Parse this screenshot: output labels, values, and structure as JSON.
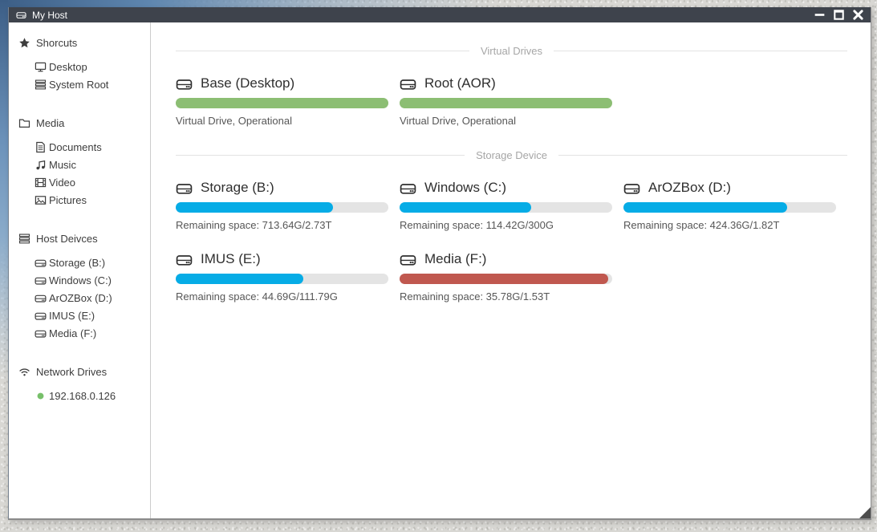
{
  "window": {
    "title": "My Host",
    "title_icon": "hdd-icon",
    "controls": [
      {
        "name": "minimize-button",
        "icon": "minimize-icon"
      },
      {
        "name": "maximize-button",
        "icon": "maximize-icon"
      },
      {
        "name": "close-button",
        "icon": "close-icon"
      }
    ]
  },
  "sidebar": {
    "sections": [
      {
        "label": "Shorcuts",
        "icon": "star-icon",
        "items": [
          {
            "label": "Desktop",
            "icon": "desktop-icon"
          },
          {
            "label": "System Root",
            "icon": "list-icon"
          }
        ]
      },
      {
        "label": "Media",
        "icon": "folder-icon",
        "items": [
          {
            "label": "Documents",
            "icon": "document-icon"
          },
          {
            "label": "Music",
            "icon": "music-icon"
          },
          {
            "label": "Video",
            "icon": "film-icon"
          },
          {
            "label": "Pictures",
            "icon": "picture-icon"
          }
        ]
      },
      {
        "label": "Host Deivces",
        "icon": "server-icon",
        "items": [
          {
            "label": "Storage (B:)",
            "icon": "hdd-icon"
          },
          {
            "label": "Windows (C:)",
            "icon": "hdd-icon"
          },
          {
            "label": "ArOZBox (D:)",
            "icon": "hdd-icon"
          },
          {
            "label": "IMUS (E:)",
            "icon": "hdd-icon"
          },
          {
            "label": "Media (F:)",
            "icon": "hdd-icon"
          }
        ]
      },
      {
        "label": "Network Drives",
        "icon": "wifi-icon",
        "items": [
          {
            "label": "192.168.0.126",
            "icon": "online-dot-icon"
          }
        ]
      }
    ]
  },
  "main": {
    "sections": [
      {
        "header": "Virtual Drives",
        "cards": [
          {
            "name": "Base (Desktop)",
            "icon": "hdd-icon",
            "percent": 100,
            "color": "green",
            "status": "Virtual Drive, Operational"
          },
          {
            "name": "Root (AOR)",
            "icon": "hdd-icon",
            "percent": 100,
            "color": "green",
            "status": "Virtual Drive, Operational"
          }
        ]
      },
      {
        "header": "Storage Device",
        "cards": [
          {
            "name": "Storage (B:)",
            "icon": "hdd-icon",
            "percent": 74,
            "color": "blue",
            "status": "Remaining space: 713.64G/2.73T"
          },
          {
            "name": "Windows (C:)",
            "icon": "hdd-icon",
            "percent": 62,
            "color": "blue",
            "status": "Remaining space: 114.42G/300G"
          },
          {
            "name": "ArOZBox (D:)",
            "icon": "hdd-icon",
            "percent": 77,
            "color": "blue",
            "status": "Remaining space: 424.36G/1.82T"
          },
          {
            "name": "IMUS (E:)",
            "icon": "hdd-icon",
            "percent": 60,
            "color": "blue",
            "status": "Remaining space: 44.69G/111.79G"
          },
          {
            "name": "Media (F:)",
            "icon": "hdd-icon",
            "percent": 98,
            "color": "red",
            "status": "Remaining space: 35.78G/1.53T"
          }
        ]
      }
    ]
  },
  "colors": {
    "green": "#8CBE73",
    "blue": "#06ACE6",
    "red": "#C0584F",
    "track": "#E4E4E4",
    "titlebar": "#3E434C",
    "frame_blue": "#3C5E86",
    "online_dot": "#77C06A"
  }
}
